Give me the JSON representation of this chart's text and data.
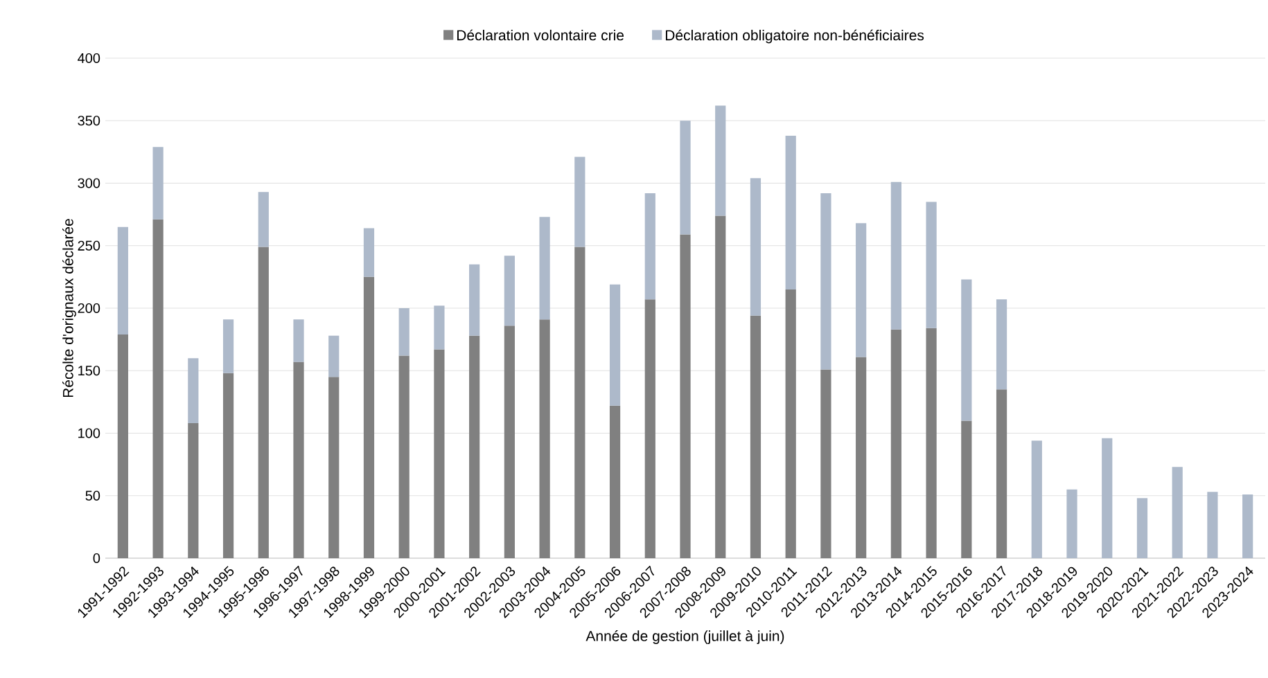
{
  "chart_data": {
    "type": "bar",
    "stacked": true,
    "xlabel": "Année de gestion (juillet à juin)",
    "ylabel": "Récolte d'orignaux déclarée",
    "categories": [
      "1991-1992",
      "1992-1993",
      "1993-1994",
      "1994-1995",
      "1995-1996",
      "1996-1997",
      "1997-1998",
      "1998-1999",
      "1999-2000",
      "2000-2001",
      "2001-2002",
      "2002-2003",
      "2003-2004",
      "2004-2005",
      "2005-2006",
      "2006-2007",
      "2007-2008",
      "2008-2009",
      "2009-2010",
      "2010-2011",
      "2011-2012",
      "2012-2013",
      "2013-2014",
      "2014-2015",
      "2015-2016",
      "2016-2017",
      "2017-2018",
      "2018-2019",
      "2019-2020",
      "2020-2021",
      "2021-2022",
      "2022-2023",
      "2023-2024"
    ],
    "series": [
      {
        "name": "Déclaration volontaire crie",
        "color": "#808080",
        "values": [
          179,
          271,
          108,
          148,
          249,
          157,
          145,
          225,
          162,
          167,
          178,
          186,
          191,
          249,
          122,
          207,
          259,
          274,
          194,
          215,
          151,
          161,
          183,
          184,
          110,
          135,
          null,
          null,
          null,
          null,
          null,
          null,
          null
        ]
      },
      {
        "name": "Déclaration obligatoire non-bénéficiaires",
        "color": "#adb9ca",
        "values": [
          86,
          58,
          52,
          43,
          44,
          34,
          33,
          39,
          38,
          35,
          57,
          56,
          82,
          72,
          97,
          85,
          91,
          88,
          110,
          123,
          141,
          107,
          118,
          101,
          113,
          72,
          94,
          55,
          96,
          48,
          73,
          53,
          51
        ]
      }
    ],
    "ylim": [
      0,
      400
    ],
    "yticks": [
      0,
      50,
      100,
      150,
      200,
      250,
      300,
      350,
      400
    ],
    "grid": "y",
    "legend": "top"
  }
}
